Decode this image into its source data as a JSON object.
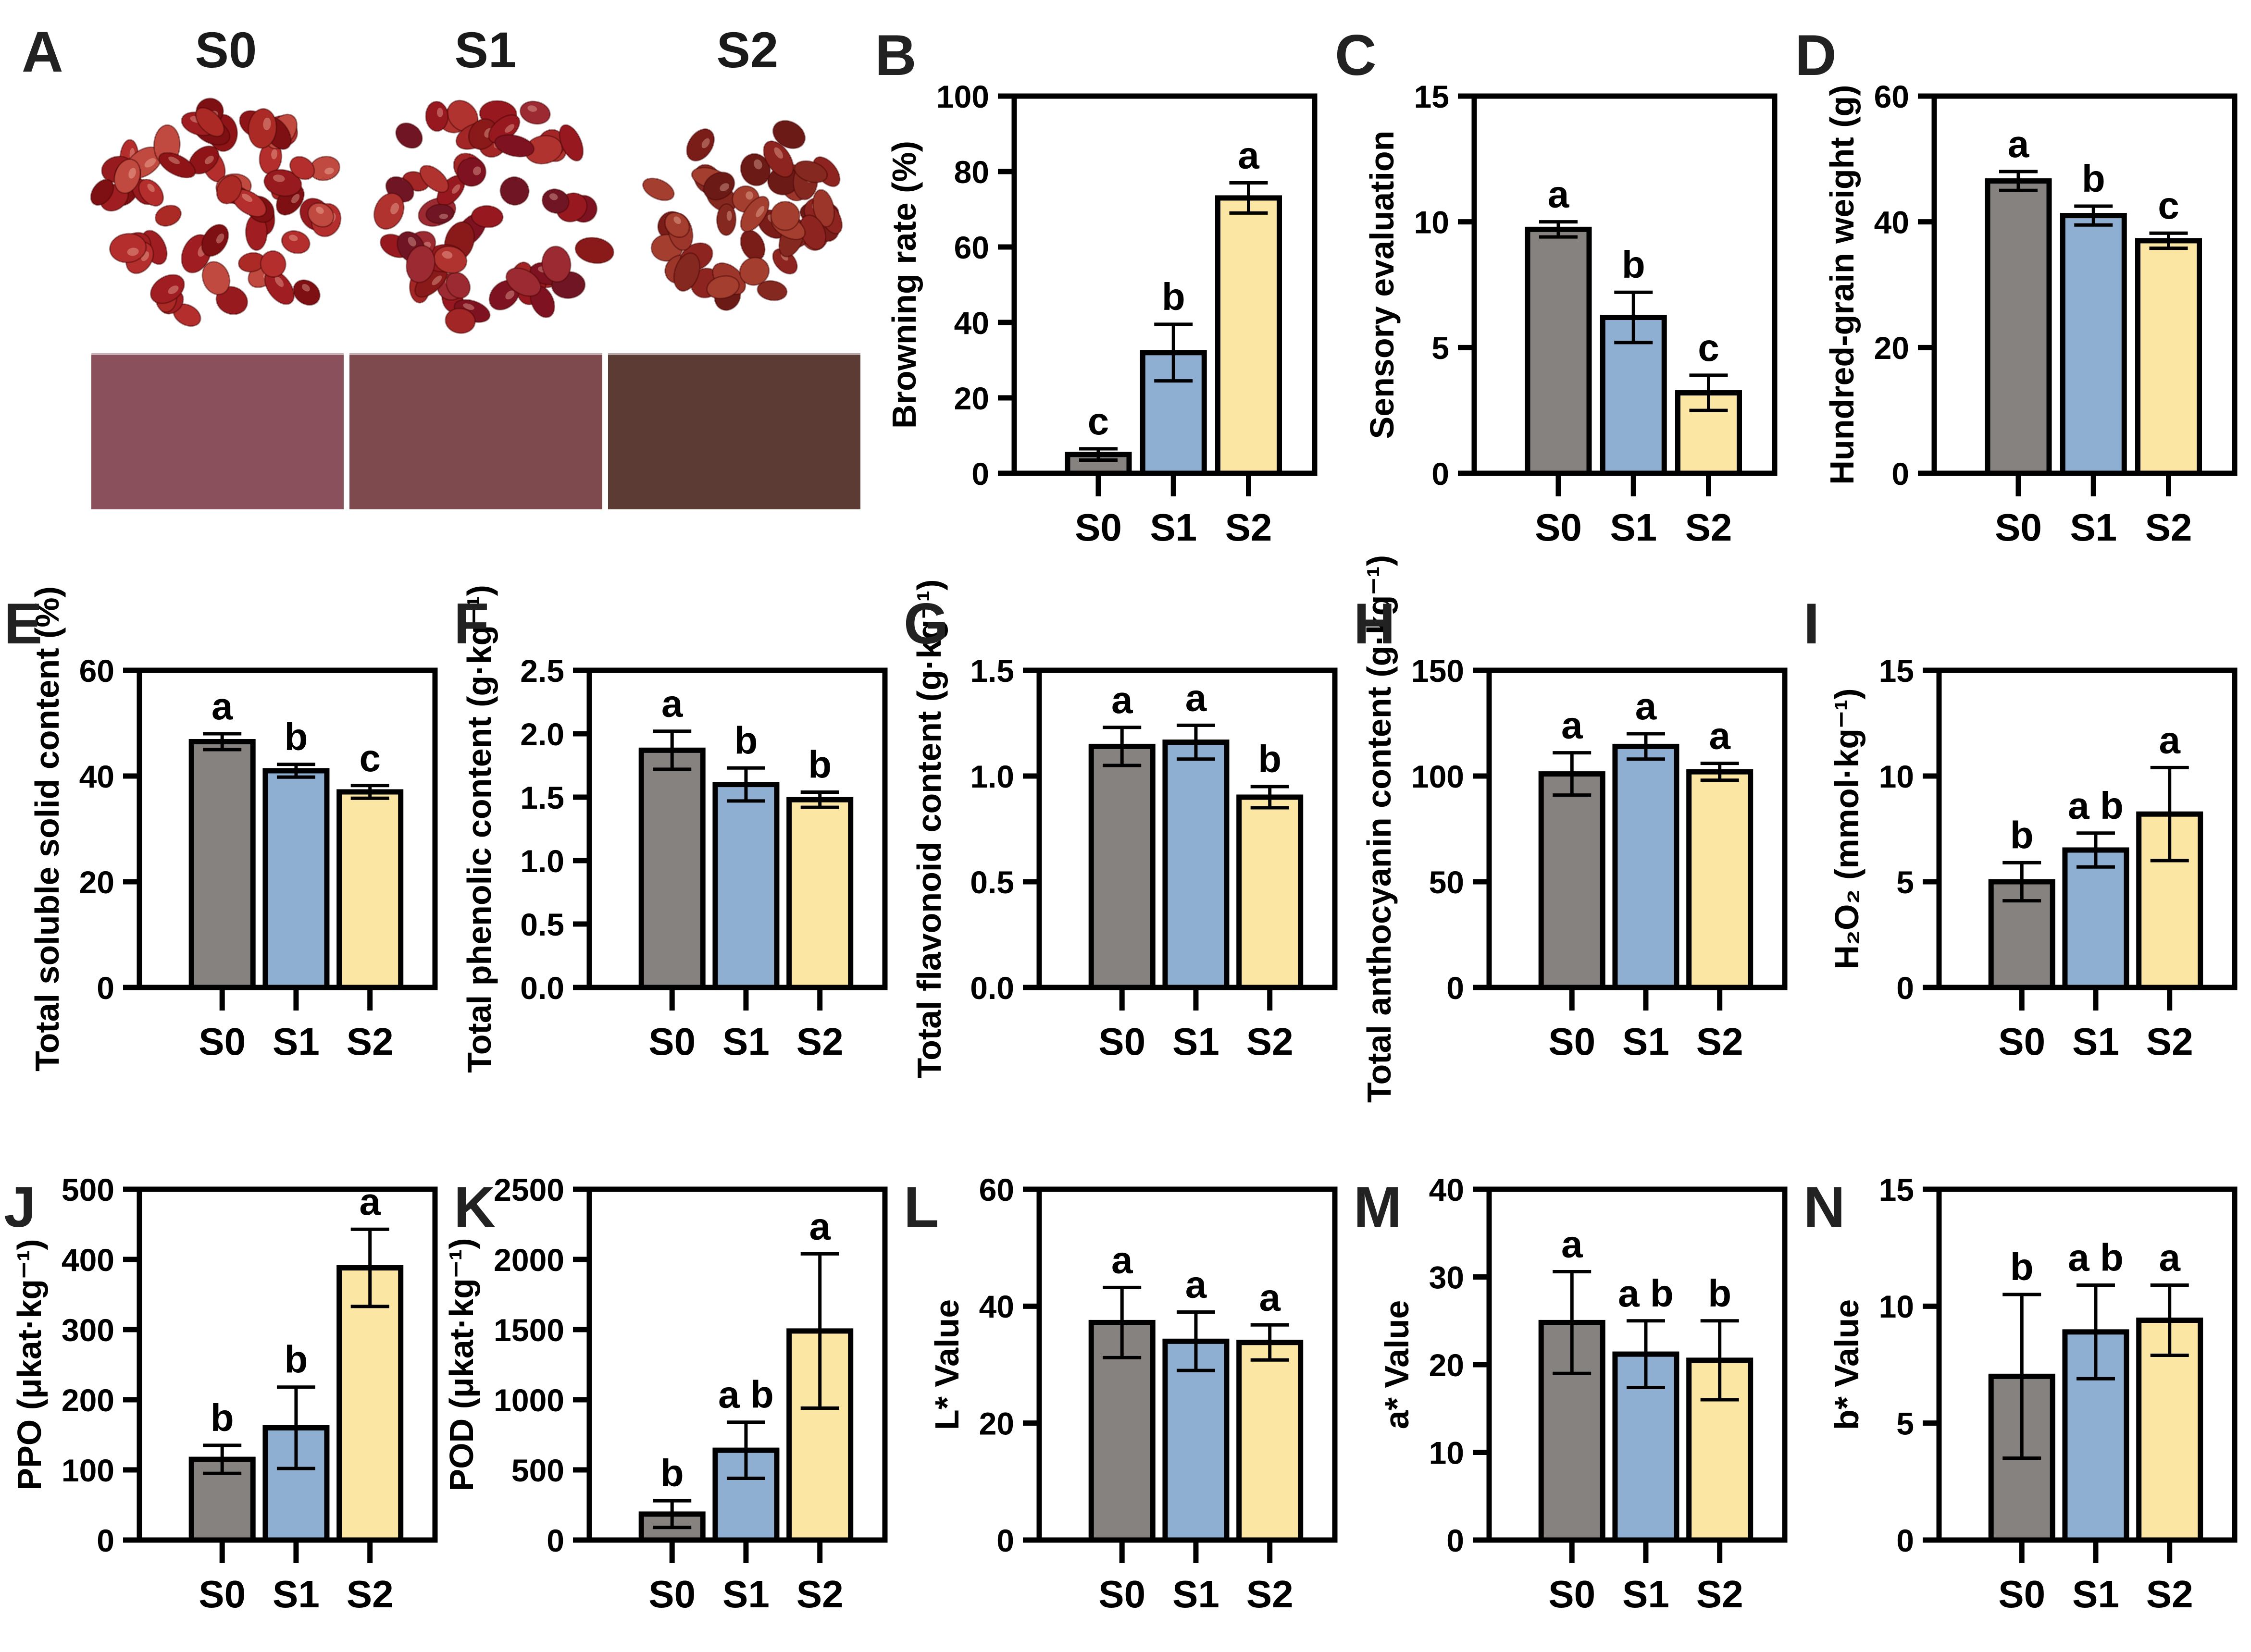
{
  "categories": [
    "S0",
    "S1",
    "S2"
  ],
  "colors": {
    "bar_fills": [
      "#868280",
      "#8FAFD2",
      "#FBE6A4"
    ],
    "bar_stroke": "#000000"
  },
  "panel_a": {
    "label": "A",
    "groups": [
      "S0",
      "S1",
      "S2"
    ],
    "swatch_colors": [
      "#8A515C",
      "#7E4A4E",
      "#5D3B35"
    ],
    "cluster_colors": [
      [
        "#a01e22",
        "#8e1418",
        "#b32e2c",
        "#971a1e",
        "#c04a40",
        "#7e0f13",
        "#ab2a25"
      ],
      [
        "#97181f",
        "#7e1220",
        "#a32626",
        "#6f1523",
        "#b03330",
        "#8a1a1a",
        "#9c2a33"
      ],
      [
        "#8e241f",
        "#7a1c18",
        "#9c352a",
        "#6b1a16",
        "#a43f30",
        "#852920"
      ]
    ]
  },
  "chart_data": [
    {
      "id": "B",
      "panel_label": "B",
      "type": "bar",
      "ylabel": "Browning rate (%)",
      "ylim": [
        0,
        100
      ],
      "yticks": [
        "0",
        "20",
        "40",
        "60",
        "80",
        "100"
      ],
      "categories": [
        "S0",
        "S1",
        "S2"
      ],
      "values": [
        5,
        32,
        73
      ],
      "errors": [
        1.5,
        7.5,
        4
      ],
      "sig_letters": [
        "c",
        "b",
        "a"
      ]
    },
    {
      "id": "C",
      "panel_label": "C",
      "type": "bar",
      "ylabel": "Sensory evaluation",
      "ylim": [
        0,
        15
      ],
      "yticks": [
        "0",
        "5",
        "10",
        "15"
      ],
      "categories": [
        "S0",
        "S1",
        "S2"
      ],
      "values": [
        9.7,
        6.2,
        3.2
      ],
      "errors": [
        0.3,
        1.0,
        0.7
      ],
      "sig_letters": [
        "a",
        "b",
        "c"
      ]
    },
    {
      "id": "D",
      "panel_label": "D",
      "type": "bar",
      "ylabel": "Hundred-grain weight (g)",
      "ylim": [
        0,
        60
      ],
      "yticks": [
        "0",
        "20",
        "40",
        "60"
      ],
      "categories": [
        "S0",
        "S1",
        "S2"
      ],
      "values": [
        46.5,
        41,
        37
      ],
      "errors": [
        1.5,
        1.5,
        1.2
      ],
      "sig_letters": [
        "a",
        "b",
        "c"
      ]
    },
    {
      "id": "E",
      "panel_label": "E",
      "type": "bar",
      "ylabel": "Total soluble solid content (%)",
      "ylim": [
        0,
        60
      ],
      "yticks": [
        "0",
        "20",
        "40",
        "60"
      ],
      "categories": [
        "S0",
        "S1",
        "S2"
      ],
      "values": [
        46.5,
        41,
        37
      ],
      "errors": [
        1.5,
        1.2,
        1.2
      ],
      "sig_letters": [
        "a",
        "b",
        "c"
      ]
    },
    {
      "id": "F",
      "panel_label": "F",
      "type": "bar",
      "ylabel": "Total phenolic content (g·kg⁻¹)",
      "ylim": [
        0,
        2.5
      ],
      "yticks": [
        "0.0",
        "0.5",
        "1.0",
        "1.5",
        "2.0",
        "2.5"
      ],
      "categories": [
        "S0",
        "S1",
        "S2"
      ],
      "values": [
        1.87,
        1.6,
        1.48
      ],
      "errors": [
        0.15,
        0.13,
        0.06
      ],
      "sig_letters": [
        "a",
        "b",
        "b"
      ]
    },
    {
      "id": "G",
      "panel_label": "G",
      "type": "bar",
      "ylabel": "Total flavonoid content (g·kg⁻¹)",
      "ylim": [
        0,
        1.5
      ],
      "yticks": [
        "0.0",
        "0.5",
        "1.0",
        "1.5"
      ],
      "categories": [
        "S0",
        "S1",
        "S2"
      ],
      "values": [
        1.14,
        1.16,
        0.9
      ],
      "errors": [
        0.09,
        0.08,
        0.05
      ],
      "sig_letters": [
        "a",
        "a",
        "b"
      ]
    },
    {
      "id": "H",
      "panel_label": "H",
      "type": "bar",
      "ylabel": "Total anthocyanin content (g·kg⁻¹)",
      "ylim": [
        0,
        150
      ],
      "yticks": [
        "0",
        "50",
        "100",
        "150"
      ],
      "categories": [
        "S0",
        "S1",
        "S2"
      ],
      "values": [
        101,
        114,
        102
      ],
      "errors": [
        10,
        6,
        4
      ],
      "sig_letters": [
        "a",
        "a",
        "a"
      ]
    },
    {
      "id": "I",
      "panel_label": "I",
      "type": "bar",
      "ylabel": "H₂O₂ (mmol·kg⁻¹)",
      "ylim": [
        0,
        15
      ],
      "yticks": [
        "0",
        "5",
        "10",
        "15"
      ],
      "categories": [
        "S0",
        "S1",
        "S2"
      ],
      "values": [
        5.0,
        6.5,
        8.2
      ],
      "errors": [
        0.9,
        0.8,
        2.2
      ],
      "sig_letters": [
        "b",
        "a b",
        "a"
      ]
    },
    {
      "id": "J",
      "panel_label": "J",
      "type": "bar",
      "ylabel": "PPO (μkat·kg⁻¹)",
      "ylim": [
        0,
        500
      ],
      "yticks": [
        "0",
        "100",
        "200",
        "300",
        "400",
        "500"
      ],
      "categories": [
        "S0",
        "S1",
        "S2"
      ],
      "values": [
        115,
        160,
        388
      ],
      "errors": [
        20,
        58,
        55
      ],
      "sig_letters": [
        "b",
        "b",
        "a"
      ]
    },
    {
      "id": "K",
      "panel_label": "K",
      "type": "bar",
      "ylabel": "POD (μkat·kg⁻¹)",
      "ylim": [
        0,
        2500
      ],
      "yticks": [
        "0",
        "500",
        "1000",
        "1500",
        "2000",
        "2500"
      ],
      "categories": [
        "S0",
        "S1",
        "S2"
      ],
      "values": [
        185,
        640,
        1490
      ],
      "errors": [
        95,
        200,
        550
      ],
      "sig_letters": [
        "b",
        "a b",
        "a"
      ]
    },
    {
      "id": "L",
      "panel_label": "L",
      "type": "bar",
      "ylabel": "L* Value",
      "ylim": [
        0,
        60
      ],
      "yticks": [
        "0",
        "20",
        "40",
        "60"
      ],
      "categories": [
        "S0",
        "S1",
        "S2"
      ],
      "values": [
        37.2,
        34,
        33.8
      ],
      "errors": [
        6,
        5,
        3
      ],
      "sig_letters": [
        "a",
        "a",
        "a"
      ]
    },
    {
      "id": "M",
      "panel_label": "M",
      "type": "bar",
      "ylabel": "a* Value",
      "ylim": [
        0,
        40
      ],
      "yticks": [
        "0",
        "10",
        "20",
        "30",
        "40"
      ],
      "categories": [
        "S0",
        "S1",
        "S2"
      ],
      "values": [
        24.8,
        21.2,
        20.5
      ],
      "errors": [
        5.8,
        3.8,
        4.5
      ],
      "sig_letters": [
        "a",
        "a b",
        "b"
      ]
    },
    {
      "id": "N",
      "panel_label": "N",
      "type": "bar",
      "ylabel": "b* Value",
      "ylim": [
        0,
        15
      ],
      "yticks": [
        "0",
        "5",
        "10",
        "15"
      ],
      "categories": [
        "S0",
        "S1",
        "S2"
      ],
      "values": [
        7.0,
        8.9,
        9.4
      ],
      "errors": [
        3.5,
        2.0,
        1.5
      ],
      "sig_letters": [
        "b",
        "a b",
        "a"
      ]
    }
  ]
}
